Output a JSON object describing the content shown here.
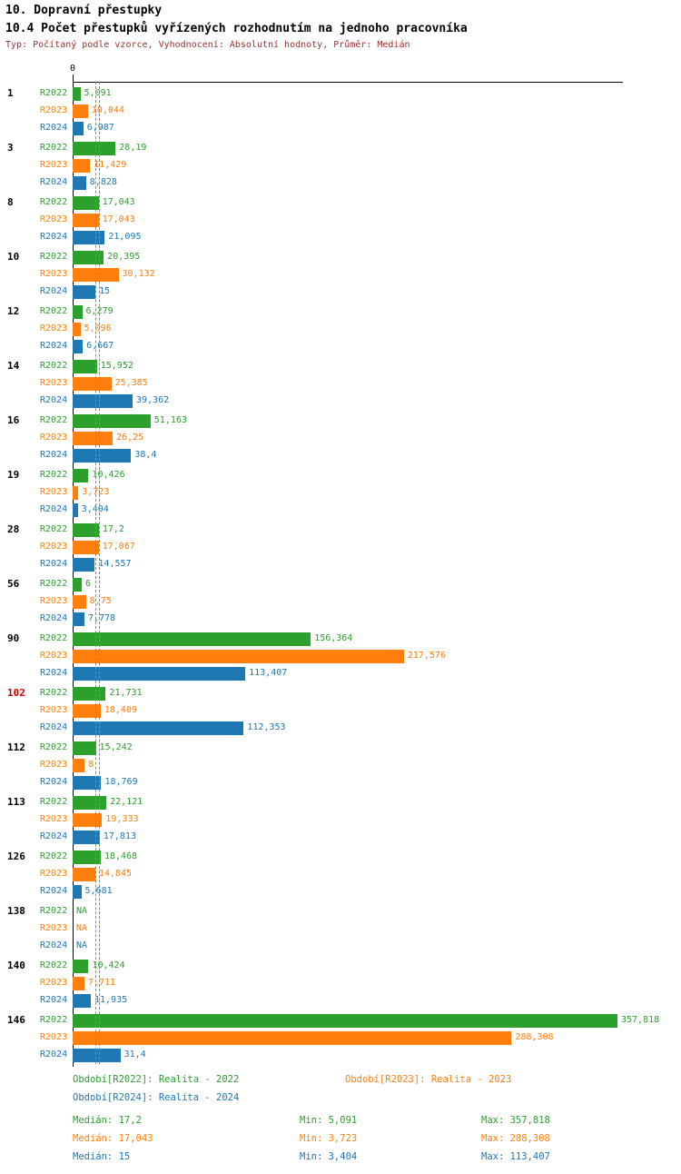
{
  "title": "10. Dopravní přestupky",
  "subtitle": "10.4 Počet přestupků vyřízených rozhodnutím na jednoho pracovníka",
  "meta": "Typ: Počítaný podle vzorce, Vyhodnocení: Absolutní hodnoty, Průměr: Medián",
  "colors": {
    "series": [
      "#2ca02c",
      "#ff7f0e",
      "#1f77b4"
    ],
    "highlight_group": "#cc0000",
    "meta_text": "#993333",
    "axis": "#000000",
    "median_line": "#8a8a8a"
  },
  "axis": {
    "zero_label": "0"
  },
  "chart_data": {
    "type": "bar",
    "orientation": "horizontal",
    "series_names": [
      "R2022",
      "R2023",
      "R2024"
    ],
    "max_value": 357.818,
    "xlim": [
      0,
      357.818
    ],
    "medians": [
      17.2,
      17.043,
      15
    ],
    "groups": [
      {
        "id": "1",
        "highlight": false,
        "values": [
          5.091,
          10.044,
          6.987
        ],
        "display": [
          "5,091",
          "10,044",
          "6,987"
        ]
      },
      {
        "id": "3",
        "highlight": false,
        "values": [
          28.19,
          11.429,
          8.828
        ],
        "display": [
          "28,19",
          "11,429",
          "8,828"
        ]
      },
      {
        "id": "8",
        "highlight": false,
        "values": [
          17.043,
          17.043,
          21.095
        ],
        "display": [
          "17,043",
          "17,043",
          "21,095"
        ]
      },
      {
        "id": "10",
        "highlight": false,
        "values": [
          20.395,
          30.132,
          15
        ],
        "display": [
          "20,395",
          "30,132",
          "15"
        ]
      },
      {
        "id": "12",
        "highlight": false,
        "values": [
          6.279,
          5.096,
          6.667
        ],
        "display": [
          "6,279",
          "5,096",
          "6,667"
        ]
      },
      {
        "id": "14",
        "highlight": false,
        "values": [
          15.952,
          25.385,
          39.362
        ],
        "display": [
          "15,952",
          "25,385",
          "39,362"
        ]
      },
      {
        "id": "16",
        "highlight": false,
        "values": [
          51.163,
          26.25,
          38.4
        ],
        "display": [
          "51,163",
          "26,25",
          "38,4"
        ]
      },
      {
        "id": "19",
        "highlight": false,
        "values": [
          10.426,
          3.723,
          3.404
        ],
        "display": [
          "10,426",
          "3,723",
          "3,404"
        ]
      },
      {
        "id": "28",
        "highlight": false,
        "values": [
          17.2,
          17.067,
          14.557
        ],
        "display": [
          "17,2",
          "17,067",
          "14,557"
        ]
      },
      {
        "id": "56",
        "highlight": false,
        "values": [
          6,
          8.75,
          7.778
        ],
        "display": [
          "6",
          "8,75",
          "7,778"
        ]
      },
      {
        "id": "90",
        "highlight": false,
        "values": [
          156.364,
          217.576,
          113.407
        ],
        "display": [
          "156,364",
          "217,576",
          "113,407"
        ]
      },
      {
        "id": "102",
        "highlight": true,
        "values": [
          21.731,
          18.409,
          112.353
        ],
        "display": [
          "21,731",
          "18,409",
          "112,353"
        ]
      },
      {
        "id": "112",
        "highlight": false,
        "values": [
          15.242,
          8,
          18.769
        ],
        "display": [
          "15,242",
          "8",
          "18,769"
        ]
      },
      {
        "id": "113",
        "highlight": false,
        "values": [
          22.121,
          19.333,
          17.813
        ],
        "display": [
          "22,121",
          "19,333",
          "17,813"
        ]
      },
      {
        "id": "126",
        "highlight": false,
        "values": [
          18.468,
          14.845,
          5.681
        ],
        "display": [
          "18,468",
          "14,845",
          "5,681"
        ]
      },
      {
        "id": "138",
        "highlight": false,
        "values": [
          null,
          null,
          null
        ],
        "display": [
          "NA",
          "NA",
          "NA"
        ]
      },
      {
        "id": "140",
        "highlight": false,
        "values": [
          10.424,
          7.711,
          11.935
        ],
        "display": [
          "10,424",
          "7,711",
          "11,935"
        ]
      },
      {
        "id": "146",
        "highlight": false,
        "values": [
          357.818,
          288.308,
          31.4
        ],
        "display": [
          "357,818",
          "288,308",
          "31,4"
        ]
      }
    ]
  },
  "legend": [
    {
      "label": "Období[R2022]: Realita - 2022"
    },
    {
      "label": "Období[R2023]: Realita - 2023"
    },
    {
      "label": "Období[R2024]: Realita - 2024"
    }
  ],
  "stats": {
    "rows": [
      {
        "median": "Medián: 17,2",
        "min": "Min: 5,091",
        "max": "Max: 357,818"
      },
      {
        "median": "Medián: 17,043",
        "min": "Min: 3,723",
        "max": "Max: 288,308"
      },
      {
        "median": "Medián: 15",
        "min": "Min: 3,404",
        "max": "Max: 113,407"
      }
    ]
  }
}
